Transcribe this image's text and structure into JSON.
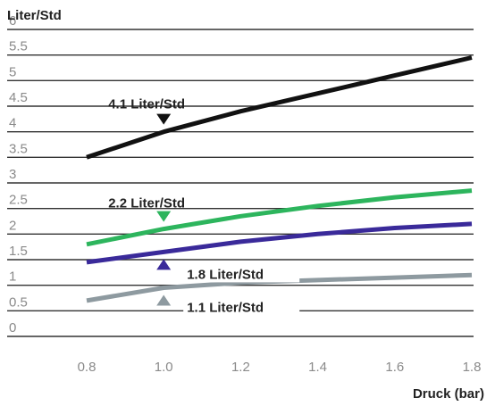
{
  "chart_data": {
    "type": "line",
    "ylabel": "Liter/Std",
    "xlabel": "Druck (bar)",
    "xlim": [
      0.8,
      1.8
    ],
    "ylim": [
      0,
      6
    ],
    "x_ticks": [
      "0.8",
      "1.0",
      "1.2",
      "1.4",
      "1.6",
      "1.8"
    ],
    "y_ticks": [
      "0",
      "0.5",
      "1",
      "1.5",
      "2",
      "2.5",
      "3",
      "3.5",
      "4",
      "4.5",
      "5",
      "5.5",
      "6"
    ],
    "grid": "horizontal",
    "series": [
      {
        "name": "4.1 Liter/Std",
        "color": "#111111",
        "x": [
          0.8,
          1.0,
          1.2,
          1.4,
          1.6,
          1.8
        ],
        "y": [
          3.5,
          4.0,
          4.4,
          4.75,
          5.1,
          5.45
        ]
      },
      {
        "name": "2.2 Liter/Std",
        "color": "#2db55d",
        "x": [
          0.8,
          1.0,
          1.2,
          1.4,
          1.6,
          1.8
        ],
        "y": [
          1.8,
          2.1,
          2.35,
          2.55,
          2.72,
          2.85
        ]
      },
      {
        "name": "1.8 Liter/Std",
        "color": "#3a2a9a",
        "x": [
          0.8,
          1.0,
          1.2,
          1.4,
          1.6,
          1.8
        ],
        "y": [
          1.45,
          1.65,
          1.85,
          2.0,
          2.12,
          2.2
        ]
      },
      {
        "name": "1.1 Liter/Std",
        "color": "#8e9aa0",
        "x": [
          0.8,
          1.0,
          1.2,
          1.4,
          1.6,
          1.8
        ],
        "y": [
          0.7,
          0.95,
          1.05,
          1.1,
          1.15,
          1.2
        ]
      }
    ],
    "annotations": [
      {
        "text": "4.1 Liter/Std",
        "marker": "down",
        "x": 1.0,
        "y": 4.0,
        "color": "#111111"
      },
      {
        "text": "2.2 Liter/Std",
        "marker": "down",
        "x": 1.0,
        "y": 2.1,
        "color": "#2db55d"
      },
      {
        "text": "1.8 Liter/Std",
        "marker": "up",
        "x": 1.0,
        "y": 1.65,
        "color": "#3a2a9a"
      },
      {
        "text": "1.1 Liter/Std",
        "marker": "up",
        "x": 1.0,
        "y": 0.95,
        "color": "#8e9aa0"
      }
    ]
  }
}
